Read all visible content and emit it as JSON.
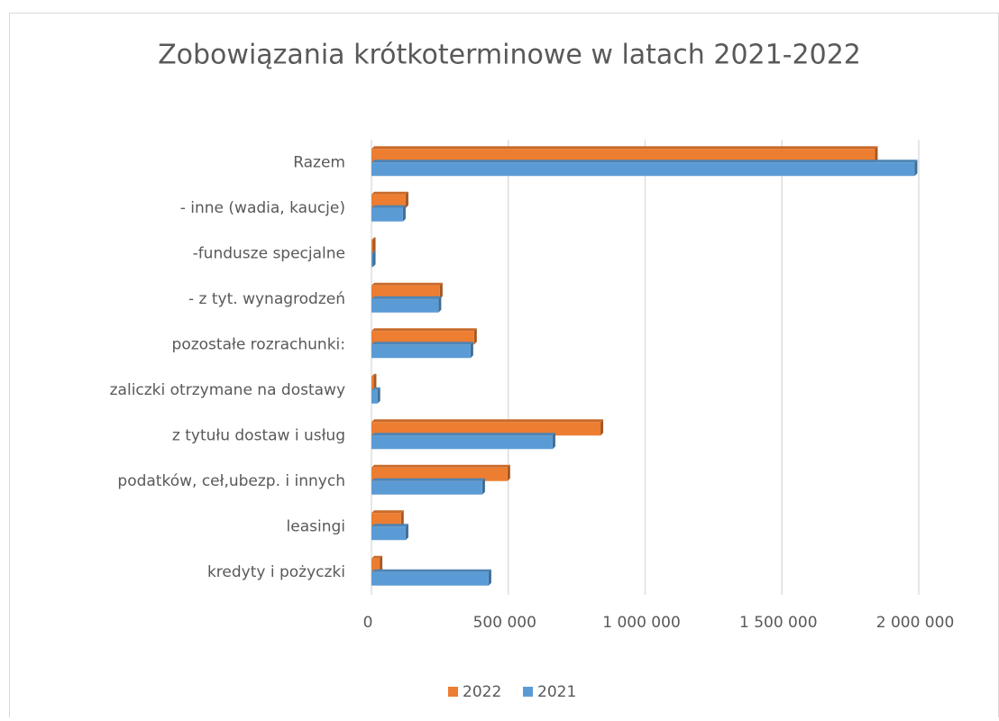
{
  "chart_data": {
    "type": "bar",
    "orientation": "horizontal",
    "title": "Zobowiązania krótkoterminowe w latach 2021-2022",
    "categories": [
      "kredyty i pożyczki",
      "leasingi",
      "podatków, ceł,ubezp. i innych",
      "z tytułu dostaw i usług",
      "zaliczki otrzymane na dostawy",
      "pozostałe rozrachunki:",
      "- z tyt. wynagrodzeń",
      "-fundusze specjalne",
      "- inne (wadia, kaucje)",
      "Razem"
    ],
    "series": [
      {
        "name": "2022",
        "color": "#ed7d31",
        "values": [
          30000,
          108000,
          497000,
          837000,
          8000,
          375000,
          250000,
          5000,
          125000,
          1840000
        ]
      },
      {
        "name": "2021",
        "color": "#5b9bd5",
        "values": [
          428000,
          125000,
          405000,
          662000,
          22000,
          362000,
          245000,
          5000,
          115000,
          1985000
        ]
      }
    ],
    "xlim": [
      0,
      2000000
    ],
    "xticks": [
      0,
      {
        "value": 500000,
        "label": "500 000"
      },
      {
        "value": 1000000,
        "label": "1 000 000"
      },
      {
        "value": 1500000,
        "label": "1 500 000"
      },
      {
        "value": 2000000,
        "label": "2 000 000"
      }
    ],
    "grid": true,
    "legend": "bottom"
  }
}
